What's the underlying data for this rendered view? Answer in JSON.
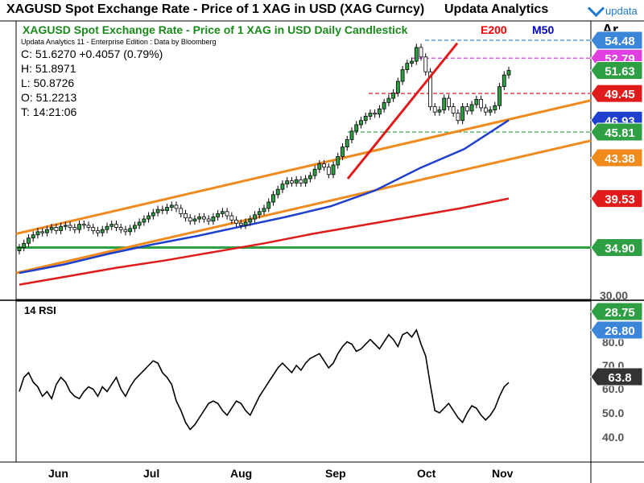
{
  "header": {
    "title": "XAGUSD Spot Exchange Rate - Price of 1 XAG in USD (XAG Curncy)",
    "brand": "Updata Analytics",
    "logo_text": "updata"
  },
  "price_panel": {
    "chart_title": "XAGUSD Spot Exchange Rate - Price of 1 XAG in USD Daily Candlestick",
    "ma_labels": [
      {
        "text": "E200",
        "color": "#ff0000"
      },
      {
        "text": "M50",
        "color": "#0000cc"
      }
    ],
    "corner_label": "Ar",
    "info_line": "Updata Analytics 11 - Enterprise Edition : Data by Bloomberg",
    "ohlc": [
      "C: 51.6270  +0.4057 (0.79%)",
      "H: 51.8971",
      "L: 50.8726",
      "O: 51.2213",
      "T: 14:21:06"
    ],
    "axis_tick": "30.00",
    "price_tags": [
      {
        "value": "54.48",
        "color": "#3b86d9",
        "price": 54.48
      },
      {
        "value": "52.79",
        "color": "#e040e0",
        "price": 52.79
      },
      {
        "value": "51.63",
        "color": "#2ea043",
        "price": 51.63
      },
      {
        "value": "49.45",
        "color": "#e01b1b",
        "price": 49.45
      },
      {
        "value": "46.93",
        "color": "#1f3fcf",
        "price": 46.93
      },
      {
        "value": "45.81",
        "color": "#2ea043",
        "price": 45.81
      },
      {
        "value": "43.38",
        "color": "#f08a1c",
        "price": 43.38
      },
      {
        "value": "39.53",
        "color": "#e01b1b",
        "price": 39.53
      },
      {
        "value": "34.90",
        "color": "#2ea043",
        "price": 34.9
      }
    ]
  },
  "rsi_panel": {
    "label": "14 RSI",
    "ticks": [
      "80.0",
      "70.0",
      "60.0",
      "50.0",
      "40.0"
    ],
    "tags": [
      {
        "value": "28.75",
        "color": "#2ea043"
      },
      {
        "value": "26.80",
        "color": "#3b86d9"
      },
      {
        "value": "63.8",
        "color": "#333333"
      }
    ]
  },
  "x_axis": {
    "months": [
      "Jun",
      "Jul",
      "Aug",
      "Sep",
      "Oct",
      "Nov"
    ]
  },
  "chart_data": {
    "type": "candlestick",
    "title": "XAGUSD Spot Exchange Rate - Price of 1 XAG in USD Daily Candlestick",
    "x_labels": [
      "Jun",
      "Jul",
      "Aug",
      "Sep",
      "Oct",
      "Nov"
    ],
    "ylim": [
      30,
      56
    ],
    "close": [
      34.9,
      35.3,
      35.8,
      36.1,
      36.4,
      36.3,
      36.6,
      36.8,
      36.5,
      36.9,
      37.0,
      36.8,
      36.6,
      37.1,
      37.0,
      36.8,
      36.5,
      36.3,
      36.6,
      36.9,
      37.1,
      36.8,
      36.6,
      36.4,
      36.7,
      37.0,
      37.3,
      37.6,
      37.9,
      38.2,
      38.5,
      38.4,
      38.7,
      38.9,
      38.6,
      38.1,
      37.7,
      37.4,
      37.6,
      37.8,
      37.6,
      37.4,
      37.8,
      38.1,
      38.3,
      37.9,
      37.5,
      37.2,
      37.0,
      37.3,
      37.6,
      38.0,
      38.3,
      38.6,
      39.2,
      39.9,
      40.4,
      40.9,
      41.2,
      41.0,
      41.3,
      41.0,
      41.4,
      41.7,
      42.3,
      42.8,
      42.5,
      41.8,
      42.7,
      43.5,
      44.4,
      45.1,
      45.9,
      46.5,
      46.9,
      47.3,
      47.6,
      47.5,
      48.0,
      48.6,
      49.0,
      49.5,
      50.6,
      51.7,
      52.3,
      52.5,
      53.8,
      52.9,
      51.5,
      48.2,
      47.7,
      47.9,
      49.0,
      48.2,
      47.6,
      46.9,
      48.2,
      47.8,
      48.4,
      48.9,
      48.1,
      47.7,
      47.9,
      48.3,
      50.1,
      51.2,
      51.63
    ],
    "series": [
      {
        "name": "E200",
        "values": [
          31.4,
          32.2,
          33.0,
          33.7,
          34.5,
          35.3,
          36.2,
          37.0,
          37.8,
          38.6,
          39.53
        ]
      },
      {
        "name": "M50",
        "values": [
          32.5,
          33.3,
          34.3,
          35.2,
          36.0,
          36.9,
          37.8,
          38.8,
          40.3,
          42.4,
          44.2,
          46.93
        ]
      }
    ],
    "levels": [
      54.48,
      52.79,
      49.45,
      45.81,
      34.9
    ],
    "channel": {
      "upper": [
        36.2,
        48.8
      ],
      "lower": [
        32.5,
        45.0
      ]
    },
    "rsi": {
      "name": "14 RSI",
      "ylim": [
        35,
        88
      ],
      "values": [
        60,
        66,
        68,
        64,
        62,
        58,
        60,
        57,
        63,
        66,
        64,
        60,
        58,
        57,
        60,
        62,
        61,
        58,
        62,
        60,
        63,
        66,
        61,
        58,
        62,
        65,
        67,
        69,
        71,
        73,
        72,
        68,
        66,
        63,
        56,
        52,
        47,
        44,
        46,
        49,
        52,
        55,
        56,
        55,
        52,
        50,
        53,
        56,
        55,
        52,
        50,
        54,
        58,
        61,
        64,
        67,
        70,
        72,
        70,
        68,
        71,
        69,
        72,
        74,
        75,
        76,
        73,
        70,
        72,
        76,
        79,
        81,
        80,
        77,
        78,
        80,
        82,
        80,
        78,
        81,
        84,
        82,
        79,
        84,
        85,
        83,
        86,
        80,
        75,
        63,
        52,
        51,
        53,
        55,
        52,
        49,
        47,
        51,
        54,
        53,
        50,
        48,
        50,
        53,
        58,
        62,
        63.8
      ]
    }
  }
}
